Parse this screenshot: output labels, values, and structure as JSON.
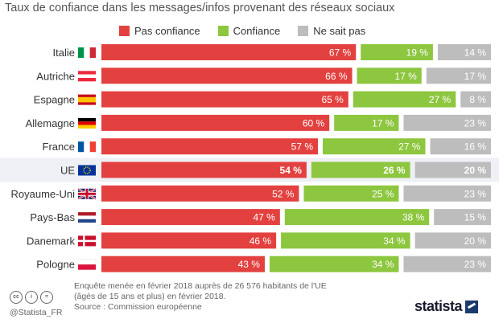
{
  "chart_data": {
    "type": "bar",
    "stacked": true,
    "orientation": "horizontal",
    "title": "Taux de confiance dans les messages/infos provenant des réseaux sociaux",
    "categories": [
      "Italie",
      "Autriche",
      "Espagne",
      "Allemagne",
      "France",
      "UE",
      "Royaume-Uni",
      "Pays-Bas",
      "Danemark",
      "Pologne"
    ],
    "highlight_category": "UE",
    "series": [
      {
        "name": "Pas confiance",
        "color": "#e2413f",
        "values": [
          67,
          66,
          65,
          60,
          57,
          54,
          52,
          47,
          46,
          43
        ],
        "labels": [
          "67 %",
          "66 %",
          "65 %",
          "60 %",
          "57 %",
          "54 %",
          "52 %",
          "47 %",
          "46 %",
          "43 %"
        ]
      },
      {
        "name": "Confiance",
        "color": "#8dc63f",
        "values": [
          19,
          17,
          27,
          17,
          27,
          26,
          25,
          38,
          34,
          34
        ],
        "labels": [
          "19 %",
          "17 %",
          "27 %",
          "17 %",
          "27 %",
          "26 %",
          "25 %",
          "38 %",
          "34 %",
          "34 %"
        ]
      },
      {
        "name": "Ne sait pas",
        "color": "#bdbdbd",
        "values": [
          14,
          17,
          8,
          23,
          16,
          20,
          23,
          15,
          20,
          23
        ],
        "labels": [
          "14 %",
          "17 %",
          "8 %",
          "23 %",
          "16 %",
          "20 %",
          "23 %",
          "15 %",
          "20 %",
          "23 %"
        ]
      }
    ],
    "legend": "top"
  },
  "footer": {
    "note_line1": "Enquête menée en février 2018 auprès de 26 576 habitants de l'UE",
    "note_line2": "(âgés de 15 ans et plus) en février 2018.",
    "source": "Source : Commission européenne",
    "handle": "@Statista_FR",
    "logo": "statista"
  }
}
